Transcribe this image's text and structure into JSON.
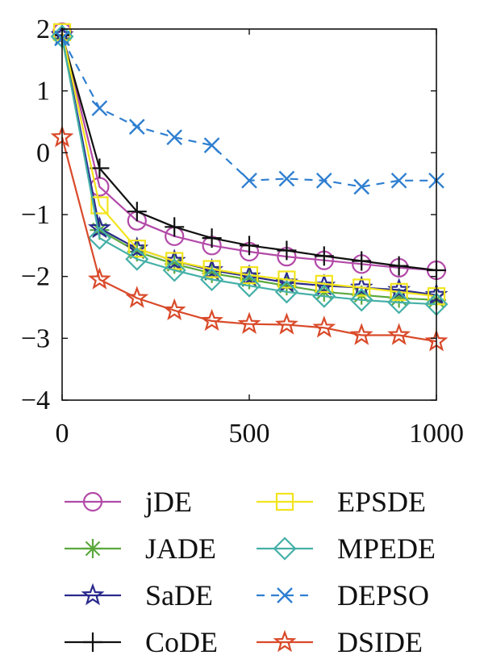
{
  "chart_data": {
    "type": "line",
    "title": "",
    "xlabel": "",
    "ylabel": "",
    "xlim": [
      0,
      1000
    ],
    "ylim": [
      -4,
      2
    ],
    "x_ticks": [
      0,
      500,
      1000
    ],
    "x_tick_labels": [
      "0",
      "500",
      "1000"
    ],
    "y_ticks": [
      2,
      1,
      0,
      -1,
      -2,
      -3,
      -4
    ],
    "y_tick_labels": [
      "2",
      "1",
      "0",
      "−1",
      "−2",
      "−3",
      "−4"
    ],
    "grid": false,
    "legend_position": "bottom",
    "x": [
      0,
      100,
      200,
      300,
      400,
      500,
      600,
      700,
      800,
      900,
      1000
    ],
    "series": [
      {
        "name": "jDE",
        "color": "#b34aa8",
        "marker": "circle",
        "dash": false,
        "values": [
          1.95,
          -0.55,
          -1.1,
          -1.35,
          -1.5,
          -1.6,
          -1.68,
          -1.74,
          -1.8,
          -1.86,
          -1.9
        ]
      },
      {
        "name": "JADE",
        "color": "#5aa83c",
        "marker": "asterisk",
        "dash": false,
        "values": [
          1.85,
          -1.25,
          -1.6,
          -1.8,
          -1.95,
          -2.05,
          -2.15,
          -2.25,
          -2.3,
          -2.35,
          -2.38
        ]
      },
      {
        "name": "SaDE",
        "color": "#2a2a8c",
        "marker": "star",
        "dash": false,
        "values": [
          1.9,
          -1.22,
          -1.55,
          -1.75,
          -1.9,
          -2.0,
          -2.1,
          -2.15,
          -2.18,
          -2.22,
          -2.3
        ]
      },
      {
        "name": "CoDE",
        "color": "#111111",
        "marker": "plus",
        "dash": false,
        "values": [
          1.9,
          -0.25,
          -0.95,
          -1.2,
          -1.38,
          -1.5,
          -1.58,
          -1.67,
          -1.75,
          -1.83,
          -1.9
        ]
      },
      {
        "name": "EPSDE",
        "color": "#f2e41d",
        "marker": "square",
        "dash": false,
        "values": [
          1.95,
          -0.85,
          -1.55,
          -1.75,
          -1.88,
          -1.98,
          -2.05,
          -2.12,
          -2.18,
          -2.25,
          -2.32
        ]
      },
      {
        "name": "MPEDE",
        "color": "#45b0a8",
        "marker": "diamond",
        "dash": false,
        "values": [
          1.88,
          -1.38,
          -1.72,
          -1.9,
          -2.05,
          -2.15,
          -2.25,
          -2.32,
          -2.38,
          -2.42,
          -2.45
        ]
      },
      {
        "name": "DEPSO",
        "color": "#2f7fd0",
        "marker": "cross",
        "dash": true,
        "values": [
          1.85,
          0.72,
          0.42,
          0.25,
          0.12,
          -0.45,
          -0.42,
          -0.45,
          -0.55,
          -0.45,
          -0.45
        ]
      },
      {
        "name": "DSIDE",
        "color": "#d94a2a",
        "marker": "star",
        "dash": false,
        "values": [
          0.25,
          -2.05,
          -2.35,
          -2.55,
          -2.72,
          -2.77,
          -2.78,
          -2.83,
          -2.95,
          -2.95,
          -3.05
        ]
      }
    ]
  }
}
